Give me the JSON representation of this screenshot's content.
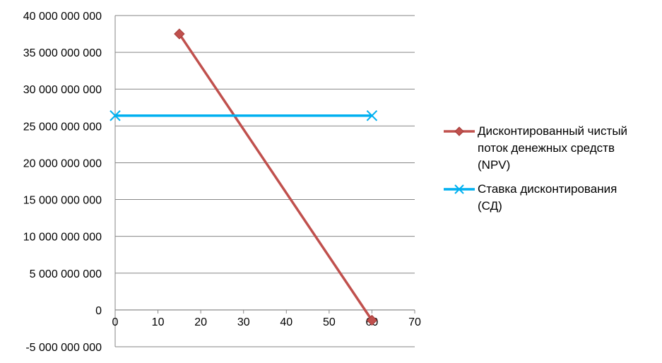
{
  "chart_data": {
    "type": "line",
    "title": "",
    "xlabel": "",
    "ylabel": "",
    "xlim": [
      0,
      70
    ],
    "ylim": [
      -5000000000,
      40000000000
    ],
    "x_ticks": [
      0,
      10,
      20,
      30,
      40,
      50,
      60,
      70
    ],
    "x_tick_labels": [
      "0",
      "10",
      "20",
      "30",
      "40",
      "50",
      "60",
      "70"
    ],
    "y_ticks": [
      -5000000000,
      0,
      5000000000,
      10000000000,
      15000000000,
      20000000000,
      25000000000,
      30000000000,
      35000000000,
      40000000000
    ],
    "y_tick_labels": [
      "-5 000 000 000",
      "0",
      "5 000 000 000",
      "10 000 000 000",
      "15 000 000 000",
      "20 000 000 000",
      "25 000 000 000",
      "30 000 000 000",
      "35 000 000 000",
      "40 000 000 000"
    ],
    "grid": "horizontal",
    "legend_position": "right",
    "series": [
      {
        "name": "Дисконтированный чистый поток денежных средств (NPV)",
        "name_lines": [
          "Дисконтированный чистый",
          "поток денежных средств",
          "(NPV)"
        ],
        "color": "#C0504D",
        "marker": "diamond",
        "x": [
          15,
          60
        ],
        "y": [
          37500000000,
          -1400000000
        ]
      },
      {
        "name": "Ставка дисконтирования (СД)",
        "name_lines": [
          "Ставка дисконтирования",
          "(СД)"
        ],
        "color": "#00B0F0",
        "marker": "x",
        "x": [
          0,
          60
        ],
        "y": [
          26400000000,
          26400000000
        ]
      }
    ]
  }
}
